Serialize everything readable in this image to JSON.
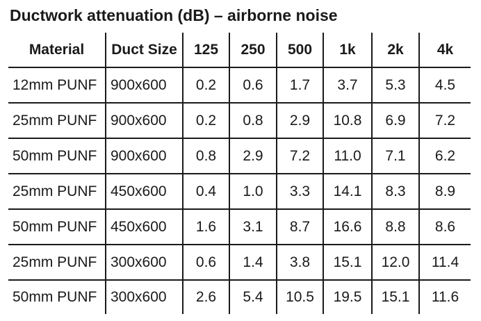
{
  "title": "Ductwork attenuation (dB) – airborne noise",
  "table": {
    "headers": [
      "Material",
      "Duct Size",
      "125",
      "250",
      "500",
      "1k",
      "2k",
      "4k"
    ],
    "rows": [
      [
        "12mm PUNF",
        "900x600",
        "0.2",
        "0.6",
        "1.7",
        "3.7",
        "5.3",
        "4.5"
      ],
      [
        "25mm PUNF",
        "900x600",
        "0.2",
        "0.8",
        "2.9",
        "10.8",
        "6.9",
        "7.2"
      ],
      [
        "50mm PUNF",
        "900x600",
        "0.8",
        "2.9",
        "7.2",
        "11.0",
        "7.1",
        "6.2"
      ],
      [
        "25mm PUNF",
        "450x600",
        "0.4",
        "1.0",
        "3.3",
        "14.1",
        "8.3",
        "8.9"
      ],
      [
        "50mm PUNF",
        "450x600",
        "1.6",
        "3.1",
        "8.7",
        "16.6",
        "8.8",
        "8.6"
      ],
      [
        "25mm PUNF",
        "300x600",
        "0.6",
        "1.4",
        "3.8",
        "15.1",
        "12.0",
        "11.4"
      ],
      [
        "50mm PUNF",
        "300x600",
        "2.6",
        "5.4",
        "10.5",
        "19.5",
        "15.1",
        "11.6"
      ]
    ]
  }
}
